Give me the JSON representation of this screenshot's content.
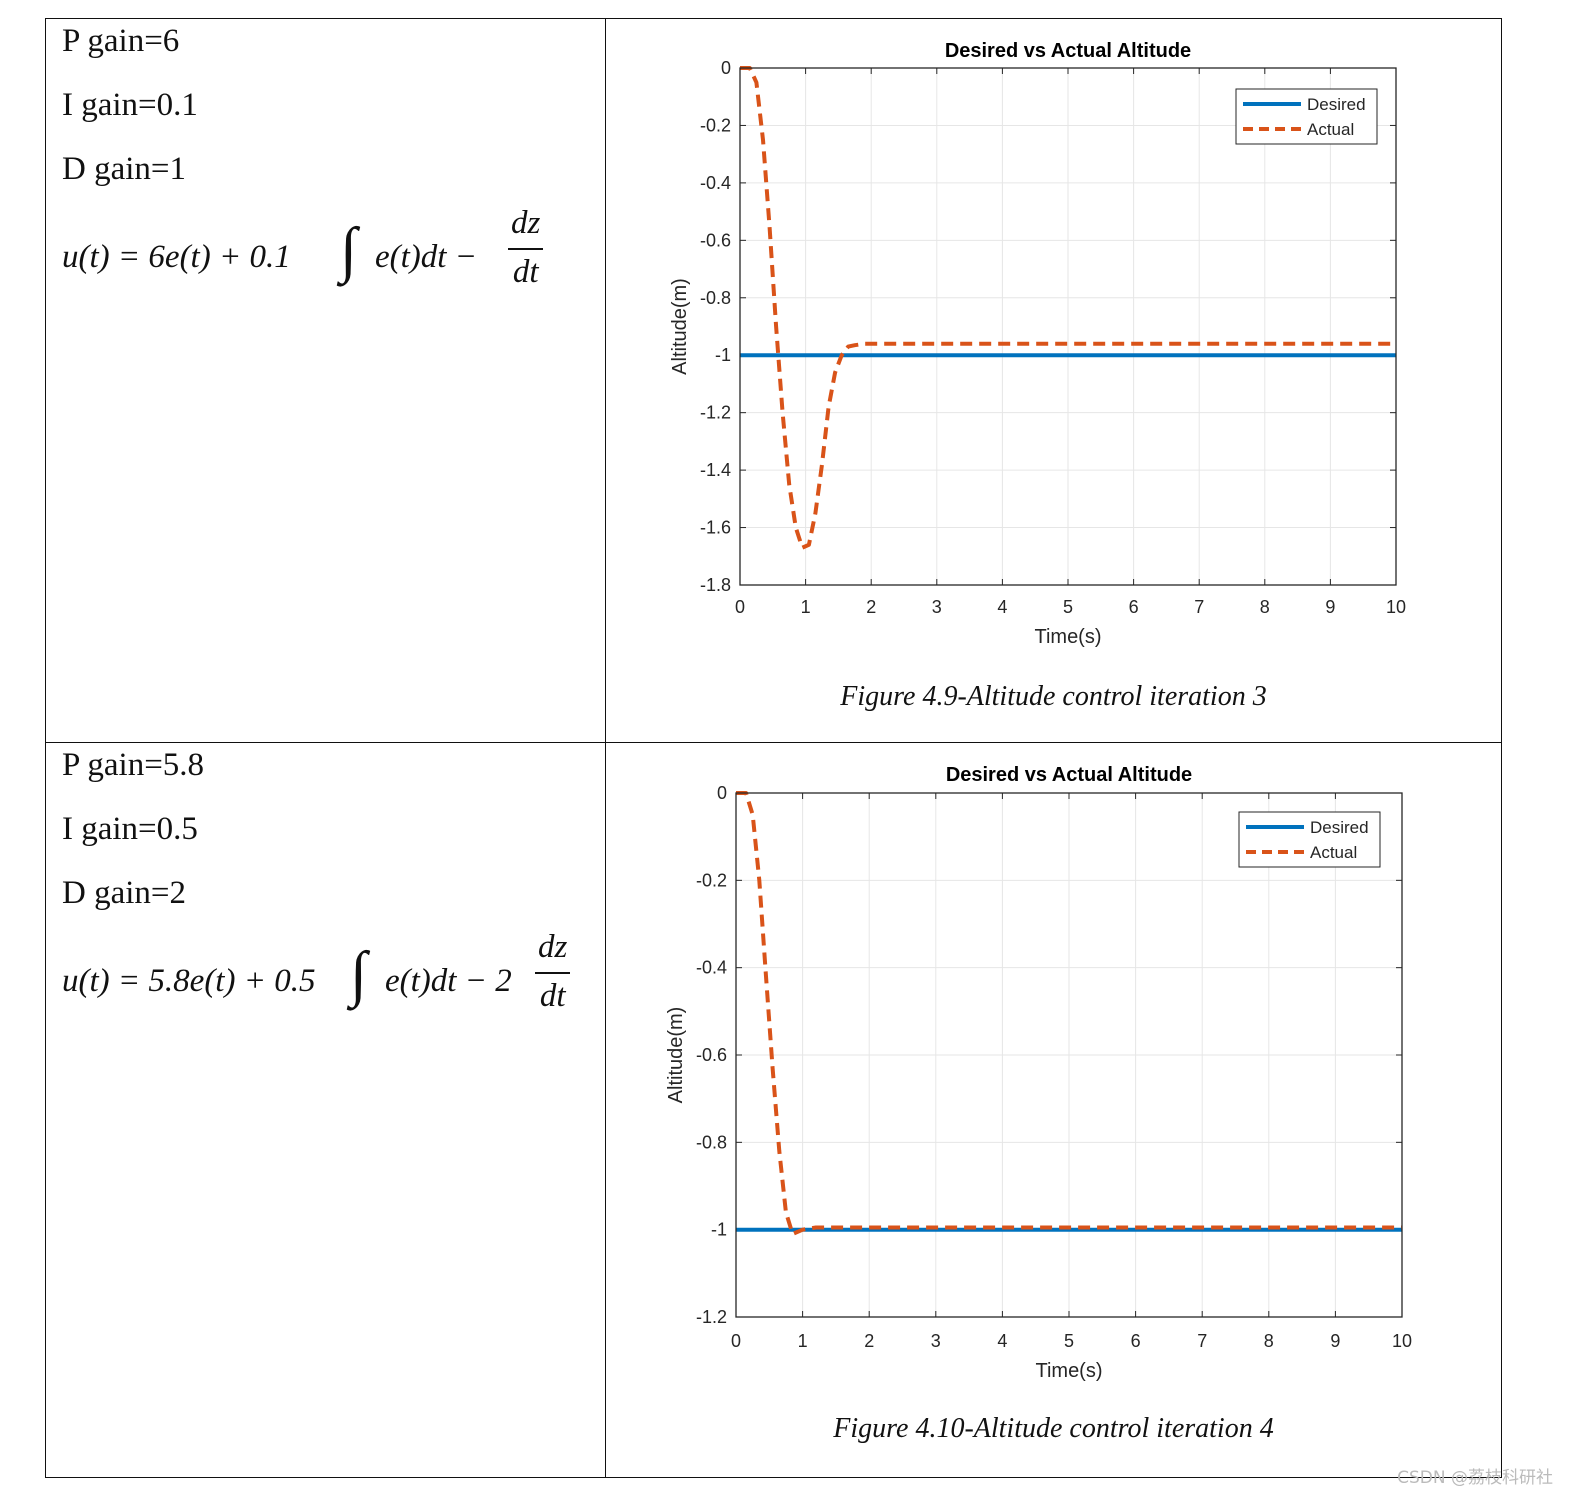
{
  "rows": [
    {
      "p_gain": "P gain=6",
      "i_gain": "I gain=0.1",
      "d_gain": "D gain=1",
      "formula": {
        "lhs": "u(t) = 6e(t) + 0.1",
        "integrand": "e(t)dt −",
        "coef": "",
        "num": "dz",
        "den": "dt"
      },
      "caption": "Figure 4.9-Altitude control iteration 3"
    },
    {
      "p_gain": "P gain=5.8",
      "i_gain": "I gain=0.5",
      "d_gain": "D gain=2",
      "formula": {
        "lhs": "u(t) = 5.8e(t) + 0.5",
        "integrand": "e(t)dt − 2",
        "coef": "",
        "num": "dz",
        "den": "dt"
      },
      "caption": "Figure 4.10-Altitude control iteration 4"
    }
  ],
  "chart_data": [
    {
      "type": "line",
      "title": "Desired vs Actual Altitude",
      "xlabel": "Time(s)",
      "ylabel": "Altitude(m)",
      "xlim": [
        0,
        10
      ],
      "ylim": [
        -1.8,
        0
      ],
      "xticks": [
        0,
        1,
        2,
        3,
        4,
        5,
        6,
        7,
        8,
        9,
        10
      ],
      "yticks": [
        0,
        -0.2,
        -0.4,
        -0.6,
        -0.8,
        -1,
        -1.2,
        -1.4,
        -1.6,
        -1.8
      ],
      "ytick_labels": [
        "0",
        "-0.2",
        "-0.4",
        "-0.6",
        "-0.8",
        "-1",
        "-1.2",
        "-1.4",
        "-1.6",
        "-1.8"
      ],
      "grid": true,
      "legend_position": "top-right",
      "colors": {
        "Desired": "#0072BD",
        "Actual": "#D95319"
      },
      "series": [
        {
          "name": "Desired",
          "style": "solid",
          "x": [
            0,
            10
          ],
          "y": [
            -1,
            -1
          ]
        },
        {
          "name": "Actual",
          "style": "dashed",
          "x": [
            0,
            0.15,
            0.25,
            0.35,
            0.45,
            0.55,
            0.65,
            0.75,
            0.85,
            0.95,
            1.05,
            1.15,
            1.25,
            1.35,
            1.45,
            1.55,
            1.65,
            1.75,
            1.9,
            2.2,
            3,
            5,
            7,
            10
          ],
          "y": [
            0,
            0,
            -0.05,
            -0.25,
            -0.55,
            -0.9,
            -1.2,
            -1.45,
            -1.6,
            -1.67,
            -1.66,
            -1.55,
            -1.38,
            -1.18,
            -1.06,
            -1.0,
            -0.97,
            -0.965,
            -0.96,
            -0.96,
            -0.96,
            -0.96,
            -0.96,
            -0.96
          ]
        }
      ]
    },
    {
      "type": "line",
      "title": "Desired vs Actual Altitude",
      "xlabel": "Time(s)",
      "ylabel": "Altitude(m)",
      "xlim": [
        0,
        10
      ],
      "ylim": [
        -1.2,
        0
      ],
      "xticks": [
        0,
        1,
        2,
        3,
        4,
        5,
        6,
        7,
        8,
        9,
        10
      ],
      "yticks": [
        0,
        -0.2,
        -0.4,
        -0.6,
        -0.8,
        -1,
        -1.2
      ],
      "ytick_labels": [
        "0",
        "-0.2",
        "-0.4",
        "-0.6",
        "-0.8",
        "-1",
        "-1.2"
      ],
      "grid": true,
      "legend_position": "top-right",
      "colors": {
        "Desired": "#0072BD",
        "Actual": "#D95319"
      },
      "series": [
        {
          "name": "Desired",
          "style": "solid",
          "x": [
            0,
            10
          ],
          "y": [
            -1,
            -1
          ]
        },
        {
          "name": "Actual",
          "style": "dashed",
          "x": [
            0,
            0.15,
            0.25,
            0.35,
            0.45,
            0.55,
            0.65,
            0.75,
            0.85,
            1.0,
            1.2,
            1.5,
            2,
            3,
            5,
            7,
            10
          ],
          "y": [
            0,
            0,
            -0.05,
            -0.2,
            -0.42,
            -0.63,
            -0.82,
            -0.96,
            -1.01,
            -1.0,
            -0.995,
            -0.995,
            -0.995,
            -0.995,
            -0.995,
            -0.995,
            -0.995
          ]
        }
      ]
    }
  ],
  "watermark": "CSDN @荔枝科研社"
}
